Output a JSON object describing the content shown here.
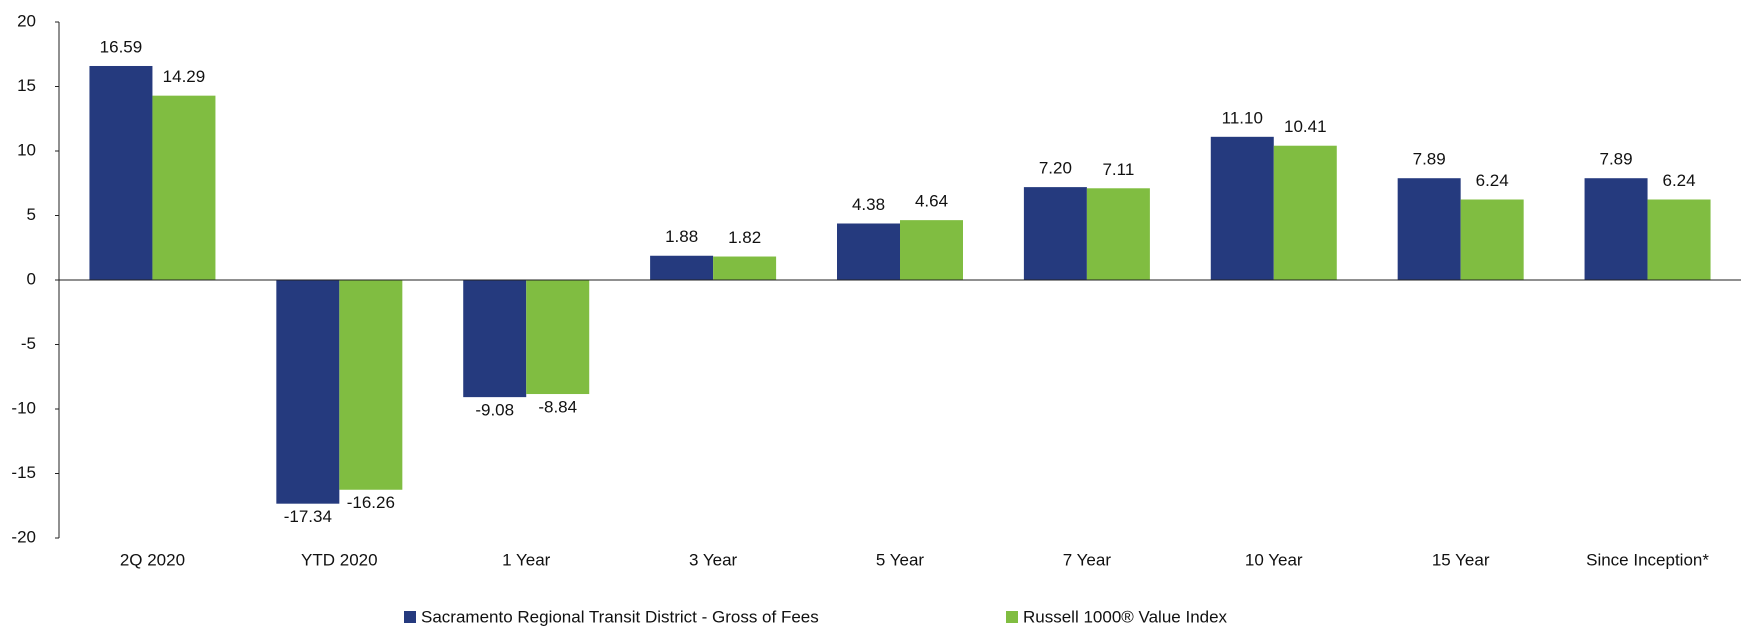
{
  "chart_data": {
    "type": "bar",
    "categories": [
      "2Q 2020",
      "YTD 2020",
      "1 Year",
      "3 Year",
      "5 Year",
      "7 Year",
      "10 Year",
      "15 Year",
      "Since Inception*"
    ],
    "series": [
      {
        "name": "Sacramento Regional Transit District - Gross of Fees",
        "color": "#253a7e",
        "values": [
          16.59,
          -17.34,
          -9.08,
          1.88,
          4.38,
          7.2,
          11.1,
          7.89,
          7.89
        ],
        "value_labels": [
          "16.59",
          "-17.34",
          "-9.08",
          "1.88",
          "4.38",
          "7.20",
          "11.10",
          "7.89",
          "7.89"
        ]
      },
      {
        "name": "Russell 1000® Value Index",
        "color": "#80bd41",
        "values": [
          14.29,
          -16.26,
          -8.84,
          1.82,
          4.64,
          7.11,
          10.41,
          6.24,
          6.24
        ],
        "value_labels": [
          "14.29",
          "-16.26",
          "-8.84",
          "1.82",
          "4.64",
          "7.11",
          "10.41",
          "6.24",
          "6.24"
        ]
      }
    ],
    "ylim": [
      -20,
      20
    ],
    "yticks": [
      -20,
      -15,
      -10,
      -5,
      0,
      5,
      10,
      15,
      20
    ],
    "grid": false,
    "legend": "bottom"
  }
}
